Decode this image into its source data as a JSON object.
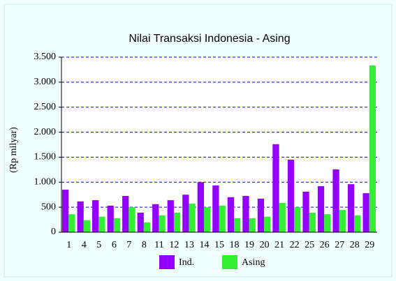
{
  "chart_data": {
    "type": "bar",
    "title": "Nilai Transaksi Indonesia - Asing",
    "y_label": "(Rp milyar)",
    "categories": [
      "1",
      "4",
      "5",
      "6",
      "7",
      "8",
      "11",
      "12",
      "13",
      "14",
      "15",
      "18",
      "19",
      "20",
      "21",
      "22",
      "25",
      "26",
      "27",
      "28",
      "29"
    ],
    "series": [
      {
        "name": "Ind.",
        "color": "#9400ff",
        "values": [
          850,
          615,
          640,
          530,
          725,
          390,
          560,
          640,
          750,
          1000,
          935,
          700,
          725,
          670,
          1760,
          1450,
          810,
          920,
          1255,
          960,
          780
        ]
      },
      {
        "name": "Asing",
        "color": "#33ee33",
        "values": [
          360,
          240,
          310,
          280,
          500,
          195,
          335,
          390,
          570,
          500,
          530,
          280,
          280,
          310,
          585,
          500,
          390,
          360,
          445,
          335,
          3335
        ]
      }
    ],
    "ylim": [
      0,
      3500
    ],
    "yticks": [
      0,
      500,
      {
        "value": 1000,
        "label": "1.000"
      },
      {
        "value": 1500,
        "label": "1.500"
      },
      {
        "value": 2000,
        "label": "2.000"
      },
      {
        "value": 2500,
        "label": "2.500"
      },
      {
        "value": 3000,
        "label": "3.000"
      },
      {
        "value": 3500,
        "label": "3.500"
      }
    ],
    "grid": true,
    "legend": "bottom"
  }
}
